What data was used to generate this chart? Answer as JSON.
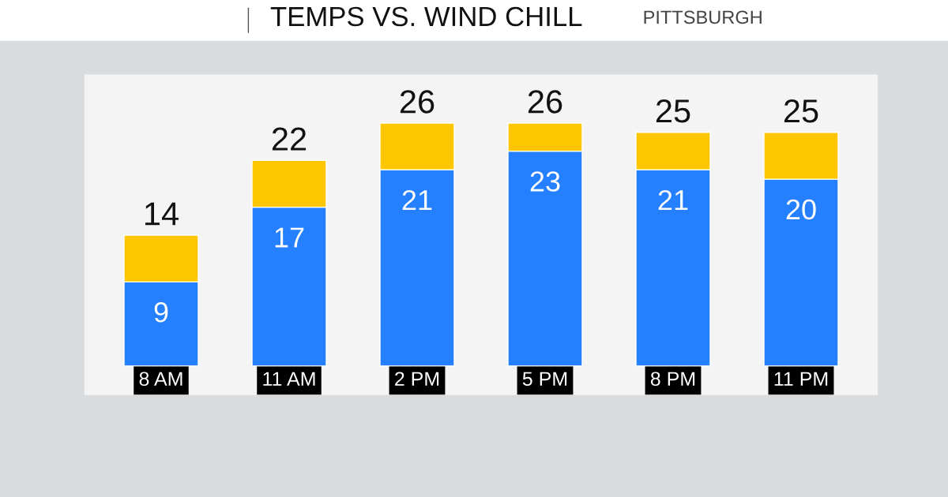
{
  "chart_data": {
    "type": "bar",
    "title": "TEMPS VS. WIND CHILL",
    "subtitle": "PITTSBURGH",
    "categories": [
      "8 AM",
      "11 AM",
      "2 PM",
      "5 PM",
      "8 PM",
      "11 PM"
    ],
    "stacked": true,
    "series": [
      {
        "color": "#2480fe",
        "values": [
          9,
          17,
          21,
          23,
          21,
          20
        ],
        "value_labels": [
          "9",
          "17",
          "21",
          "23",
          "21",
          "20"
        ]
      },
      {
        "color": "#fec600",
        "values": [
          5,
          5,
          5,
          3,
          4,
          5
        ],
        "value_labels": [
          null,
          null,
          null,
          null,
          null,
          null
        ]
      }
    ],
    "totals": [
      "14",
      "22",
      "26",
      "26",
      "25",
      "25"
    ]
  }
}
